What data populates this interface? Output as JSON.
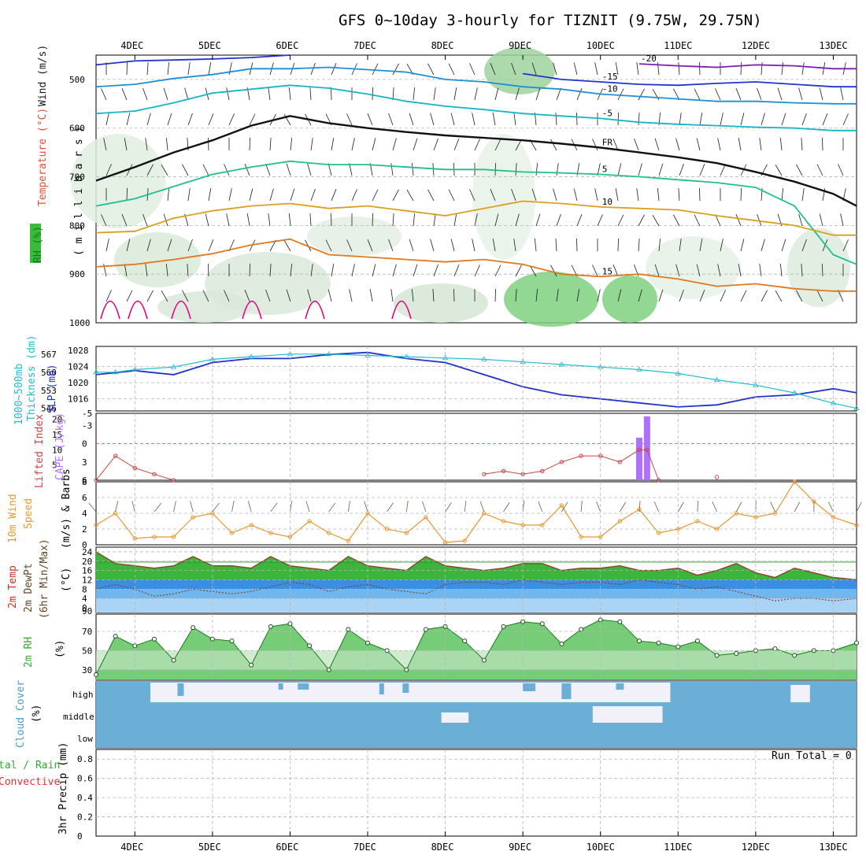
{
  "header": {
    "title": "GFS 0~10day 3-hourly for TIZNIT (9.75W, 29.75N)"
  },
  "colors": {
    "wind_barb": "#1a1a1a",
    "slp": "#2233cc",
    "thickness": "#22bbcc",
    "cape": "#b070ff",
    "lifted_index": "#cc4444",
    "wind_speed": "#e69933",
    "rh_fill": "#33cc33",
    "cloud": "#6baed6",
    "cloud_gap": "#f2f0f8",
    "t_m20": "#7a1fb0",
    "t_m15": "#2233cc",
    "t_m10": "#1e8fd6",
    "t_m5": "#19b3c6",
    "t_0": "#111111",
    "t_5": "#1fbf8f",
    "t_10": "#d9a020",
    "t_15": "#e07820",
    "rh_contour": "#c9c9c9",
    "convective_line": "#e00080"
  },
  "x_axis": {
    "top_dates": [
      "4DEC",
      "5DEC",
      "6DEC",
      "7DEC",
      "8DEC",
      "9DEC",
      "10DEC",
      "11DEC",
      "12DEC",
      "13DEC"
    ],
    "bottom_dates": [
      "4DEC",
      "5DEC",
      "6DEC",
      "7DEC",
      "8DEC",
      "9DEC",
      "10DEC",
      "11DEC",
      "12DEC",
      "13DEC"
    ],
    "day_positions": [
      3.5,
      4,
      5,
      6,
      7,
      8,
      9,
      10,
      11,
      12,
      13,
      13.3
    ]
  },
  "panels": {
    "upper": {
      "ylabel_wind": "Wind (m/s)",
      "ylabel_temp": "Temperature (°C)",
      "ylabel_rh": "RH (%)",
      "ylabel_mb": "( m i l l i b a r s )",
      "yticks": [
        "500",
        "600",
        "700",
        "800",
        "900",
        "1000"
      ]
    },
    "slp": {
      "ylabel_thk": "1000~500mb",
      "ylabel_thk2": "Thickness (dm)",
      "ylabel_slp": "SLP (mb)",
      "slp_ticks": [
        "1028",
        "1024",
        "1020",
        "1016"
      ],
      "thk_ticks": [
        "567",
        "560",
        "553",
        "546"
      ]
    },
    "cape": {
      "ylabel_li": "Lifted Index",
      "ylabel_cape": "CAPE (J/kg)",
      "li_ticks": [
        "-5",
        "-3",
        "0",
        "3",
        "6"
      ],
      "cape_ticks": [
        "20",
        "15",
        "10",
        "5"
      ]
    },
    "wind": {
      "ylabel1": "10m Wind",
      "ylabel2": "Speed",
      "ylabel3": "(m/s) & Barbs",
      "ticks": [
        "8",
        "6",
        "4",
        "2",
        "0"
      ]
    },
    "temp": {
      "ylabel1": "2m Temp",
      "ylabel2": "2m DewPt",
      "ylabel3": "(6hr Min/Max)",
      "ylabel4": "(°C)",
      "ticks": [
        "24",
        "20",
        "16",
        "12",
        "8",
        "4",
        "0"
      ],
      "bottom_tick": "90"
    },
    "rh2m": {
      "ylabel": "2m RH",
      "unit": "(%)",
      "ticks": [
        "70",
        "50",
        "30"
      ]
    },
    "cloud": {
      "ylabel1": "Cloud Cover",
      "ylabel2": "(%)",
      "levels": [
        "high",
        "middle",
        "low"
      ]
    },
    "precip": {
      "ylabel1": "3hr Precip (mm)",
      "ylabel_a": "tal / Rain",
      "ylabel_b": "Convective",
      "run_total": "Run Total = 0",
      "ticks": [
        "0.8",
        "0.6",
        "0.4",
        "0.2",
        "0"
      ]
    }
  },
  "chart_data": [
    {
      "type": "line",
      "panel": "Upper-air isotherms (mb vs time)",
      "xlabel": "date (Dec)",
      "ylabel": "millibars",
      "ylim": [
        1000,
        450
      ],
      "x": [
        3.5,
        4,
        4.5,
        5,
        5.5,
        6,
        6.5,
        7,
        7.5,
        8,
        8.5,
        9,
        9.5,
        10,
        10.5,
        11,
        11.5,
        12,
        12.5,
        13,
        13.3
      ],
      "series": [
        {
          "name": "-20",
          "values": [
            null,
            null,
            null,
            null,
            null,
            null,
            null,
            null,
            null,
            null,
            null,
            null,
            null,
            null,
            468,
            472,
            475,
            470,
            472,
            478,
            478
          ]
        },
        {
          "name": "-15",
          "values": [
            470,
            462,
            460,
            458,
            455,
            450,
            null,
            null,
            null,
            null,
            null,
            488,
            500,
            505,
            510,
            512,
            508,
            505,
            510,
            515,
            515
          ]
        },
        {
          "name": "-10",
          "values": [
            515,
            510,
            498,
            490,
            478,
            478,
            475,
            480,
            485,
            500,
            505,
            515,
            520,
            530,
            535,
            540,
            545,
            545,
            548,
            550,
            550
          ]
        },
        {
          "name": "-5",
          "values": [
            570,
            565,
            548,
            528,
            520,
            512,
            518,
            530,
            545,
            555,
            562,
            570,
            575,
            580,
            588,
            592,
            595,
            598,
            600,
            605,
            605
          ]
        },
        {
          "name": "0 (FR)",
          "values": [
            708,
            680,
            650,
            625,
            595,
            575,
            590,
            600,
            608,
            615,
            620,
            625,
            632,
            640,
            650,
            660,
            672,
            690,
            710,
            735,
            760
          ]
        },
        {
          "name": "5",
          "values": [
            760,
            745,
            720,
            695,
            680,
            668,
            675,
            675,
            680,
            685,
            685,
            690,
            692,
            695,
            700,
            706,
            712,
            722,
            760,
            860,
            880
          ]
        },
        {
          "name": "10",
          "values": [
            815,
            812,
            785,
            770,
            760,
            755,
            765,
            760,
            770,
            780,
            765,
            750,
            755,
            762,
            765,
            768,
            780,
            790,
            800,
            820,
            820
          ]
        },
        {
          "name": "15",
          "values": [
            885,
            880,
            870,
            858,
            840,
            828,
            860,
            865,
            870,
            875,
            870,
            880,
            900,
            905,
            900,
            910,
            925,
            920,
            930,
            935,
            935
          ]
        }
      ]
    },
    {
      "type": "line",
      "panel": "SLP and 1000-500mb thickness",
      "xlabel": "date (Dec)",
      "x": [
        3.5,
        3.75,
        4,
        4.5,
        5,
        5.5,
        6,
        6.5,
        7,
        7.5,
        8,
        8.5,
        9,
        9.5,
        10,
        10.5,
        11,
        11.5,
        12,
        12.5,
        13,
        13.3
      ],
      "series": [
        {
          "name": "SLP (mb)",
          "values": [
            1022,
            1022.5,
            1023,
            1022,
            1025,
            1026,
            1026,
            1027,
            1027.5,
            1026,
            1025,
            1022,
            1019,
            1017,
            1016,
            1015,
            1014,
            1014.5,
            1016.5,
            1017,
            1018.5,
            1017.5
          ]
        },
        {
          "name": "Thickness (dm)",
          "values": [
            560,
            560,
            561,
            562,
            565,
            566,
            567,
            567,
            566.5,
            566,
            565.5,
            565,
            564,
            563,
            562,
            561,
            559.5,
            557,
            555,
            552,
            548,
            546
          ]
        }
      ],
      "ylim_slp": [
        1013,
        1029
      ],
      "ylim_thk": [
        545,
        570
      ]
    },
    {
      "type": "bar",
      "panel": "CAPE and Lifted Index",
      "xlabel": "date (Dec)",
      "categories": [
        "10.5",
        "10.6"
      ],
      "series": [
        {
          "name": "CAPE (J/kg)",
          "values": [
            14,
            21
          ]
        }
      ],
      "lifted_index": {
        "x": [
          3.5,
          3.75,
          4,
          4.25,
          4.5,
          8.5,
          8.75,
          9,
          9.25,
          9.5,
          9.75,
          10,
          10.25,
          10.5,
          10.6,
          10.75,
          11.5
        ],
        "values": [
          6,
          2,
          4,
          5,
          6,
          5,
          4.5,
          5,
          4.5,
          3,
          2,
          2,
          3,
          1,
          1,
          6,
          5.5
        ]
      },
      "ylim_cape": [
        0,
        22
      ],
      "ylim_li": [
        6,
        -5
      ]
    },
    {
      "type": "line",
      "panel": "10m wind speed",
      "xlabel": "date (Dec)",
      "ylabel": "(m/s)",
      "ylim": [
        0,
        8
      ],
      "x": [
        3.5,
        3.75,
        4,
        4.25,
        4.5,
        4.75,
        5,
        5.25,
        5.5,
        5.75,
        6,
        6.25,
        6.5,
        6.75,
        7,
        7.25,
        7.5,
        7.75,
        8,
        8.25,
        8.5,
        8.75,
        9,
        9.25,
        9.5,
        9.75,
        10,
        10.25,
        10.5,
        10.75,
        11,
        11.25,
        11.5,
        11.75,
        12,
        12.25,
        12.5,
        12.75,
        13,
        13.3
      ],
      "values": [
        2.5,
        4,
        0.8,
        1,
        1,
        3.5,
        4,
        1.5,
        2.5,
        1.5,
        1,
        3,
        1.5,
        0.5,
        4,
        2,
        1.5,
        3.5,
        0.3,
        0.5,
        4,
        3,
        2.5,
        2.5,
        5,
        1,
        1,
        3,
        4.5,
        1.5,
        2,
        3,
        2,
        4,
        3.5,
        4,
        8,
        5.5,
        3.5,
        2.5
      ]
    },
    {
      "type": "area",
      "panel": "2m Temp / DewPt",
      "xlabel": "date (Dec)",
      "ylabel": "(°C)",
      "ylim": [
        -2,
        26
      ],
      "x": [
        3.5,
        3.75,
        4,
        4.25,
        4.5,
        4.75,
        5,
        5.25,
        5.5,
        5.75,
        6,
        6.25,
        6.5,
        6.75,
        7,
        7.25,
        7.5,
        7.75,
        8,
        8.25,
        8.5,
        8.75,
        9,
        9.25,
        9.5,
        9.75,
        10,
        10.25,
        10.5,
        10.75,
        11,
        11.25,
        11.5,
        11.75,
        12,
        12.25,
        12.5,
        12.75,
        13,
        13.3
      ],
      "series": [
        {
          "name": "2m Temp",
          "values": [
            24,
            19,
            18,
            17,
            18,
            22,
            18,
            18,
            17,
            22,
            18,
            17,
            16,
            22,
            18,
            17,
            16,
            22,
            18,
            17,
            16,
            17,
            19,
            19,
            16,
            17,
            17,
            18,
            16,
            16,
            17,
            14,
            16,
            19,
            15,
            13,
            17,
            15,
            13,
            12
          ]
        },
        {
          "name": "2m DewPt",
          "values": [
            8,
            10,
            8,
            5,
            6,
            8,
            7,
            6,
            7,
            9,
            11,
            10,
            7,
            9,
            10,
            8,
            7,
            6,
            10,
            11,
            11,
            10,
            12,
            11,
            10,
            11,
            11,
            10,
            12,
            11,
            10,
            8,
            9,
            7,
            5,
            3,
            4,
            4,
            3,
            4
          ]
        }
      ]
    },
    {
      "type": "area",
      "panel": "2m RH",
      "xlabel": "date (Dec)",
      "ylabel": "(%)",
      "ylim": [
        20,
        88
      ],
      "x": [
        3.5,
        3.75,
        4,
        4.25,
        4.5,
        4.75,
        5,
        5.25,
        5.5,
        5.75,
        6,
        6.25,
        6.5,
        6.75,
        7,
        7.25,
        7.5,
        7.75,
        8,
        8.25,
        8.5,
        8.75,
        9,
        9.25,
        9.5,
        9.75,
        10,
        10.25,
        10.5,
        10.75,
        11,
        11.25,
        11.5,
        11.75,
        12,
        12.25,
        12.5,
        12.75,
        13,
        13.3
      ],
      "values": [
        25,
        65,
        55,
        62,
        40,
        74,
        62,
        60,
        35,
        75,
        78,
        55,
        30,
        72,
        58,
        50,
        30,
        72,
        75,
        60,
        40,
        75,
        80,
        78,
        57,
        72,
        82,
        80,
        60,
        58,
        54,
        60,
        45,
        47,
        50,
        52,
        45,
        50,
        50,
        58
      ]
    },
    {
      "type": "heatmap",
      "panel": "Cloud Cover",
      "levels": [
        "high",
        "middle",
        "low"
      ],
      "note": "high-level clearing between 4.2DEC and 10.9DEC and near 12.5DEC; middle-level clearing near 8.0 and 10.0-10.8DEC"
    },
    {
      "type": "bar",
      "panel": "3hr Precip (mm)",
      "ylim": [
        0,
        0.9
      ],
      "categories": [],
      "values": [],
      "annotation": "Run Total = 0"
    }
  ]
}
